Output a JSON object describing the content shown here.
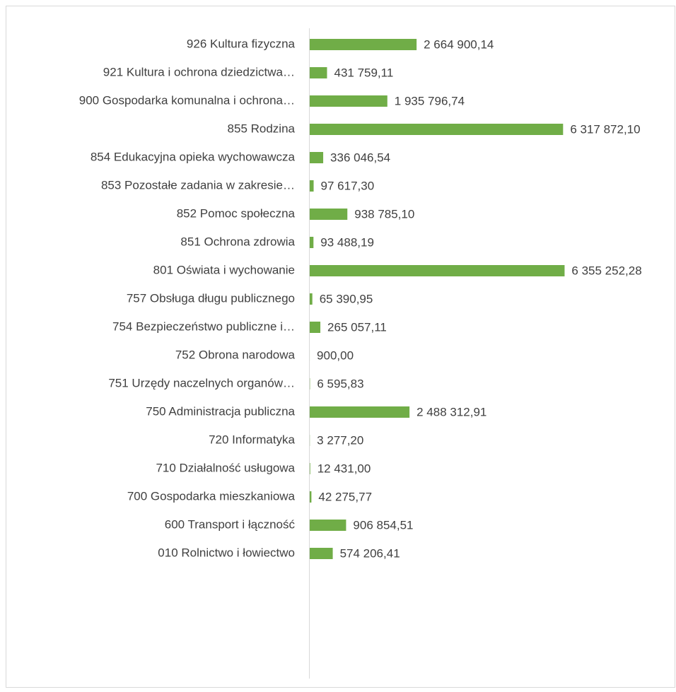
{
  "chart_data": {
    "type": "bar",
    "orientation": "horizontal",
    "color": "#70ad47",
    "categories": [
      "926 Kultura fizyczna",
      "921 Kultura i ochrona dziedzictwa…",
      "900 Gospodarka komunalna i ochrona…",
      "855 Rodzina",
      "854 Edukacyjna opieka wychowawcza",
      "853 Pozostałe zadania w zakresie…",
      "852 Pomoc społeczna",
      "851 Ochrona zdrowia",
      "801 Oświata i wychowanie",
      "757 Obsługa długu publicznego",
      "754 Bezpieczeństwo publiczne i…",
      "752 Obrona narodowa",
      "751 Urzędy naczelnych organów…",
      "750 Administracja publiczna",
      "720 Informatyka",
      "710 Działalność usługowa",
      "700 Gospodarka mieszkaniowa",
      "600 Transport i łączność",
      "010 Rolnictwo i łowiectwo"
    ],
    "values": [
      2664900.14,
      431759.11,
      1935796.74,
      6317872.1,
      336046.54,
      97617.3,
      938785.1,
      93488.19,
      6355252.28,
      65390.95,
      265057.11,
      900.0,
      6595.83,
      2488312.91,
      3277.2,
      12431.0,
      42275.77,
      906854.51,
      574206.41
    ],
    "value_labels": [
      "2 664 900,14",
      "431 759,11",
      "1 935 796,74",
      "6 317 872,10",
      "336 046,54",
      "97 617,30",
      "938 785,10",
      "93 488,19",
      "6 355 252,28",
      "65 390,95",
      "265 057,11",
      "900,00",
      "6 595,83",
      "2 488 312,91",
      "3 277,20",
      "12 431,00",
      "42 275,77",
      "906 854,51",
      "574 206,41"
    ],
    "xlim": [
      0,
      7000000
    ]
  }
}
